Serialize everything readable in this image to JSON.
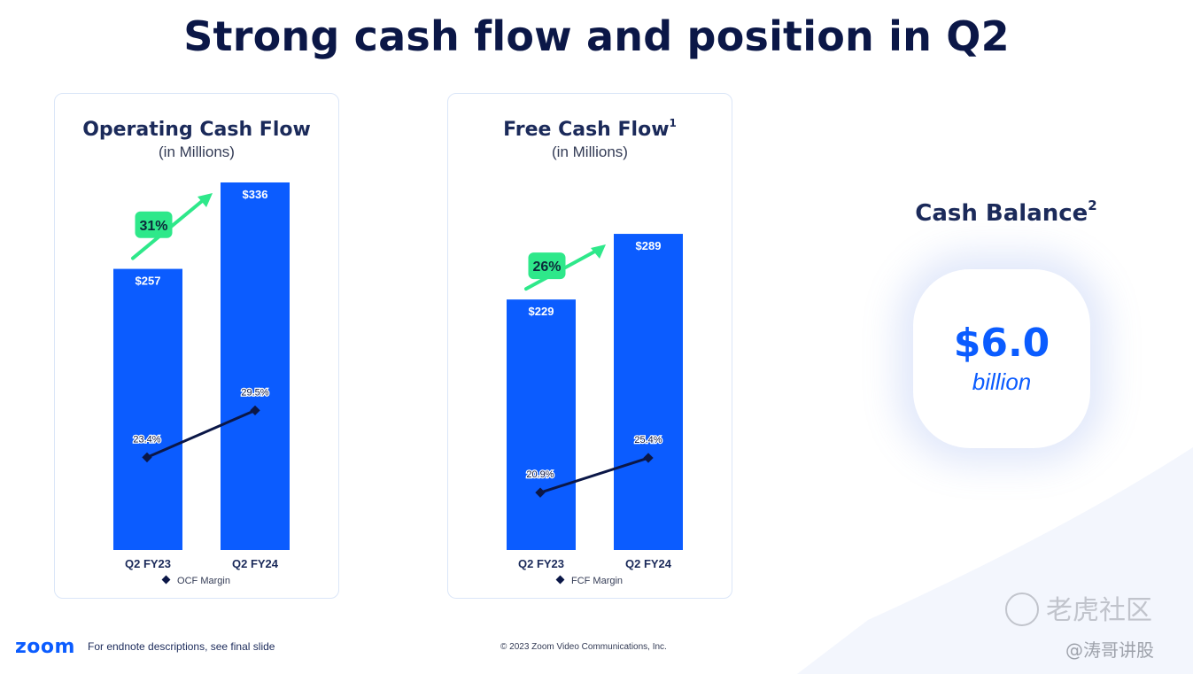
{
  "title": "Strong cash flow and position in Q2",
  "colors": {
    "bar": "#0b5cff",
    "line": "#0b1747",
    "growth_badge": "#2ee88a",
    "accent": "#0b5cff"
  },
  "chart_data": [
    {
      "type": "bar",
      "title": "Operating Cash Flow",
      "subtitle": "(in Millions)",
      "categories": [
        "Q2 FY23",
        "Q2 FY24"
      ],
      "values": [
        257,
        336
      ],
      "value_labels": [
        "$257",
        "$336"
      ],
      "line_series": {
        "name": "OCF Margin",
        "values": [
          23.4,
          29.5
        ],
        "labels": [
          "23.4%",
          "29.5%"
        ]
      },
      "growth_label": "31%",
      "legend": "bottom-center"
    },
    {
      "type": "bar",
      "title": "Free Cash Flow",
      "title_sup": "1",
      "subtitle": "(in Millions)",
      "categories": [
        "Q2 FY23",
        "Q2 FY24"
      ],
      "values": [
        229,
        289
      ],
      "value_labels": [
        "$229",
        "$289"
      ],
      "line_series": {
        "name": "FCF Margin",
        "values": [
          20.9,
          25.4
        ],
        "labels": [
          "20.9%",
          "25.4%"
        ]
      },
      "growth_label": "26%",
      "legend": "bottom-center"
    }
  ],
  "cash_balance": {
    "title": "Cash Balance",
    "title_sup": "2",
    "value": "$6.0",
    "unit": "billion"
  },
  "footer": {
    "logo": "zoom",
    "note": "For endnote descriptions, see final slide",
    "copyright": "© 2023 Zoom Video Communications, Inc."
  },
  "watermark": {
    "main": "老虎社区",
    "sub": "@涛哥讲股"
  }
}
